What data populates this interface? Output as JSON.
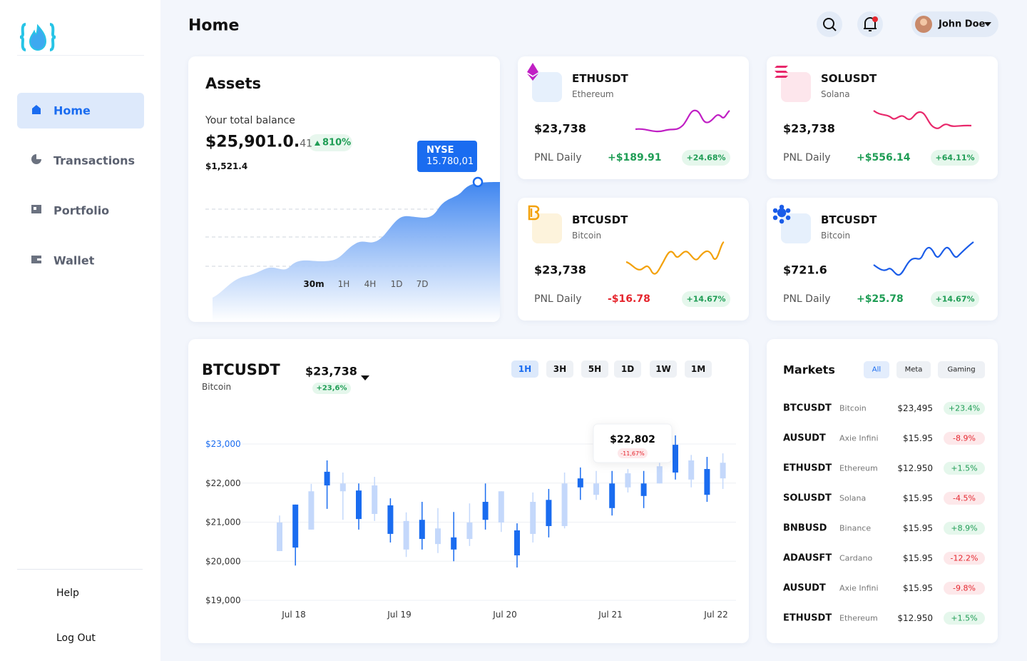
{
  "sidebar": {
    "nav": [
      "Home",
      "Transactions",
      "Portfolio",
      "Wallet"
    ],
    "footer": [
      "Help",
      "Log Out"
    ]
  },
  "header": {
    "title": "Home",
    "user": "John Doe"
  },
  "assets": {
    "title": "Assets",
    "balance_label": "Your total balance",
    "balance": "$25,901.0.",
    "balance_small": "41",
    "change": "810%",
    "sub": "$1,521.4",
    "tooltip_title": "NYSE",
    "tooltip_value": "15.780,01",
    "ranges": [
      "30m",
      "1H",
      "4H",
      "1D",
      "7D"
    ]
  },
  "tickers": [
    {
      "symbol": "ETHUSDT",
      "name": "Ethereum",
      "price": "$23,738",
      "pnl_label": "PNL Daily",
      "pnl": "+$189.91",
      "pct": "+24.68%"
    },
    {
      "symbol": "SOLUSDT",
      "name": "Solana",
      "price": "$23,738",
      "pnl_label": "PNL Daily",
      "pnl": "+$556.14",
      "pct": "+64.11%"
    },
    {
      "symbol": "BTCUSDT",
      "name": "Bitcoin",
      "price": "$23,738",
      "pnl_label": "PNL Daily",
      "pnl": "-$16.78",
      "pct": "+14.67%"
    },
    {
      "symbol": "BTCUSDT",
      "name": "Bitcoin",
      "price": "$721.6",
      "pnl_label": "PNL Daily",
      "pnl": "+$25.78",
      "pct": "+14.67%"
    }
  ],
  "chart": {
    "type": "candlestick",
    "title": "BTCUSDT",
    "subtitle": "Bitcoin",
    "price": "$23,738",
    "change": "+23,6%",
    "intervals": [
      "1H",
      "3H",
      "5H",
      "1D",
      "1W",
      "1M"
    ],
    "ylim": [
      19000,
      23000
    ],
    "yticks": [
      {
        "value": 19000,
        "label": "$19,000"
      },
      {
        "value": 20000,
        "label": "$20,000"
      },
      {
        "value": 21000,
        "label": "$21,000"
      },
      {
        "value": 22000,
        "label": "$22,000"
      },
      {
        "value": 23000,
        "label": "$23,000"
      }
    ],
    "dates": [
      "Jul 18",
      "Jul 19",
      "Jul 20",
      "Jul 21",
      "Jul 22"
    ],
    "up_color": "#1a6cf0",
    "down_color": "#c4d8fb",
    "candles": [
      {
        "open": 20990,
        "high": 21170,
        "low": 20260,
        "close": 20260
      },
      {
        "open": 20350,
        "high": 21450,
        "low": 19890,
        "close": 21450
      },
      {
        "open": 21790,
        "high": 21980,
        "low": 20810,
        "close": 20810
      },
      {
        "open": 21940,
        "high": 22580,
        "low": 21340,
        "close": 22290
      },
      {
        "open": 21990,
        "high": 22270,
        "low": 21060,
        "close": 21790
      },
      {
        "open": 21080,
        "high": 21990,
        "low": 20810,
        "close": 21810
      },
      {
        "open": 21940,
        "high": 22160,
        "low": 21030,
        "close": 21210
      },
      {
        "open": 20700,
        "high": 21610,
        "low": 20480,
        "close": 21430
      },
      {
        "open": 21030,
        "high": 21250,
        "low": 20110,
        "close": 20300
      },
      {
        "open": 20570,
        "high": 21520,
        "low": 20300,
        "close": 21060
      },
      {
        "open": 20840,
        "high": 21360,
        "low": 20210,
        "close": 20440
      },
      {
        "open": 20300,
        "high": 21260,
        "low": 20000,
        "close": 20610
      },
      {
        "open": 20990,
        "high": 21480,
        "low": 20390,
        "close": 20570
      },
      {
        "open": 21060,
        "high": 21990,
        "low": 20810,
        "close": 21520
      },
      {
        "open": 21790,
        "high": 21790,
        "low": 20750,
        "close": 20990
      },
      {
        "open": 20150,
        "high": 20970,
        "low": 19840,
        "close": 20790
      },
      {
        "open": 21520,
        "high": 21760,
        "low": 20480,
        "close": 20700
      },
      {
        "open": 20900,
        "high": 21850,
        "low": 20610,
        "close": 21570
      },
      {
        "open": 21990,
        "high": 22270,
        "low": 20840,
        "close": 20900
      },
      {
        "open": 21890,
        "high": 22400,
        "low": 21570,
        "close": 22120
      },
      {
        "open": 21990,
        "high": 22310,
        "low": 21570,
        "close": 21700
      },
      {
        "open": 21360,
        "high": 22310,
        "low": 21170,
        "close": 21990
      },
      {
        "open": 22250,
        "high": 22360,
        "low": 21760,
        "close": 21890
      },
      {
        "open": 21670,
        "high": 22310,
        "low": 21360,
        "close": 21990
      },
      {
        "open": 22430,
        "high": 22670,
        "low": 21990,
        "close": 21990
      },
      {
        "open": 22270,
        "high": 23220,
        "low": 22090,
        "close": 22980
      },
      {
        "open": 22580,
        "high": 22720,
        "low": 21890,
        "close": 22090
      },
      {
        "open": 21700,
        "high": 22670,
        "low": 21520,
        "close": 22360
      },
      {
        "open": 22520,
        "high": 22760,
        "low": 21850,
        "close": 22120
      }
    ],
    "tooltip_price": "$22,802",
    "tooltip_change": "-11,67%"
  },
  "markets": {
    "title": "Markets",
    "filters": [
      "All",
      "Meta",
      "Gaming"
    ],
    "rows": [
      [
        "BTCUSDT",
        "Bitcoin",
        "$23,495",
        "+23.4%"
      ],
      [
        "AUSUDT",
        "Axie Infini",
        "$15.95",
        "-8.9%"
      ],
      [
        "ETHUSDT",
        "Ethereum",
        "$12.950",
        "+1.5%"
      ],
      [
        "SOLUSDT",
        "Solana",
        "$15.95",
        "-4.5%"
      ],
      [
        "BNBUSD",
        "Binance",
        "$15.95",
        "+8.9%"
      ],
      [
        "ADAUSFT",
        "Cardano",
        "$15.95",
        "-12.2%"
      ],
      [
        "AUSUDT",
        "Axie Infini",
        "$15.95",
        "-9.8%"
      ],
      [
        "ETHUSDT",
        "Ethereum",
        "$12.950",
        "+1.5%"
      ]
    ]
  }
}
